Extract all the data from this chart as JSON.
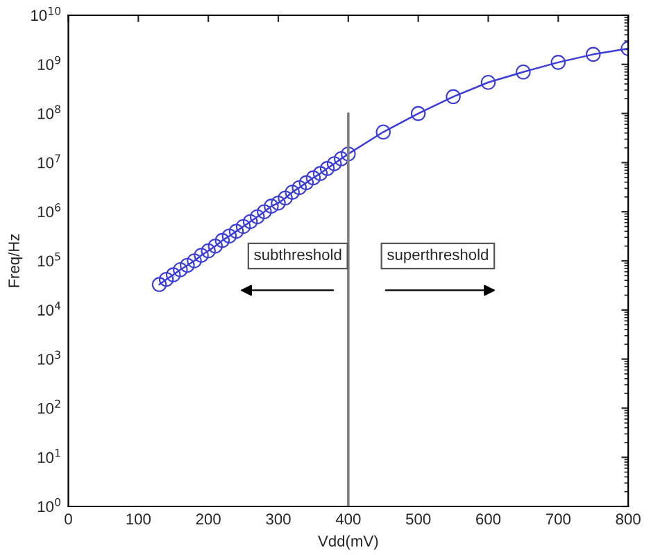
{
  "chart_data": {
    "type": "line",
    "xlabel": "Vdd(mV)",
    "ylabel": "Freq/Hz",
    "x": [
      130,
      140,
      150,
      160,
      170,
      180,
      190,
      200,
      210,
      220,
      230,
      240,
      250,
      260,
      270,
      280,
      290,
      300,
      310,
      320,
      330,
      340,
      350,
      360,
      370,
      380,
      390,
      400,
      450,
      500,
      550,
      600,
      650,
      700,
      750,
      800
    ],
    "series": [
      {
        "color": "#3c3cd8",
        "values": [
          33000,
          42000,
          52000,
          66000,
          81000,
          100000,
          130000,
          160000,
          200000,
          260000,
          320000,
          400000,
          500000,
          630000,
          790000,
          1000000,
          1300000,
          1500000,
          1900000,
          2500000,
          3100000,
          3900000,
          4900000,
          6000000,
          7600000,
          9500000,
          12000000,
          15000000,
          42000000,
          100000000,
          220000000,
          430000000,
          700000000,
          1100000000,
          1600000000,
          2100000000
        ]
      }
    ],
    "marker": "circle",
    "line_style": "solid",
    "log": "y",
    "grid": false,
    "xlim": [
      0,
      800
    ],
    "xticks": [
      0,
      100,
      200,
      300,
      400,
      500,
      600,
      700,
      800
    ],
    "ylim": [
      1,
      10000000000
    ],
    "yticks": [
      {
        "value": 1,
        "label": "10$^{0}$"
      },
      {
        "value": 10,
        "label": "10$^{1}$"
      },
      {
        "value": 100,
        "label": "10$^{2}$"
      },
      {
        "value": 1000,
        "label": "10$^{3}$"
      },
      {
        "value": 10000,
        "label": "10$^{4}$"
      },
      {
        "value": 100000,
        "label": "10$^{5}$"
      },
      {
        "value": 1000000,
        "label": "10$^{6}$"
      },
      {
        "value": 10000000,
        "label": "10$^{7}$"
      },
      {
        "value": 100000000,
        "label": "10$^{8}$"
      },
      {
        "value": 1000000000,
        "label": "10$^{9}$"
      },
      {
        "value": 10000000000,
        "label": "10$^{10}$"
      }
    ],
    "ref_lines": [
      {
        "axis": "x",
        "value": 400,
        "color": "#808080",
        "line_style": "solid"
      }
    ],
    "annotations": [
      "subthreshold",
      "superthreshold"
    ]
  }
}
